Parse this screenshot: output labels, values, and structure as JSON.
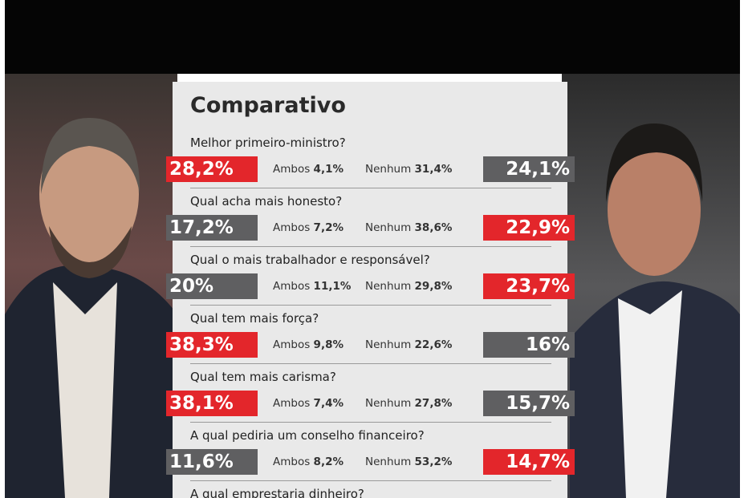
{
  "header": {
    "title": "Comparativo"
  },
  "labels": {
    "both": "Ambos",
    "neither": "Nenhum"
  },
  "questions": [
    {
      "question": "Melhor primeiro-ministro?",
      "left": "28,2%",
      "both": "4,1%",
      "neither": "31,4%",
      "right": "24,1%",
      "highlight": "left"
    },
    {
      "question": "Qual acha mais honesto?",
      "left": "17,2%",
      "both": "7,2%",
      "neither": "38,6%",
      "right": "22,9%",
      "highlight": "right"
    },
    {
      "question": "Qual o mais trabalhador e responsável?",
      "left": "20%",
      "both": "11,1%",
      "neither": "29,8%",
      "right": "23,7%",
      "highlight": "right"
    },
    {
      "question": "Qual tem mais força?",
      "left": "38,3%",
      "both": "9,8%",
      "neither": "22,6%",
      "right": "16%",
      "highlight": "left"
    },
    {
      "question": "Qual tem mais carisma?",
      "left": "38,1%",
      "both": "7,4%",
      "neither": "27,8%",
      "right": "15,7%",
      "highlight": "left"
    },
    {
      "question": "A qual pediria um conselho financeiro?",
      "left": "11,6%",
      "both": "8,2%",
      "neither": "53,2%",
      "right": "14,7%",
      "highlight": "right"
    },
    {
      "question": "A qual emprestaria dinheiro?"
    }
  ]
}
